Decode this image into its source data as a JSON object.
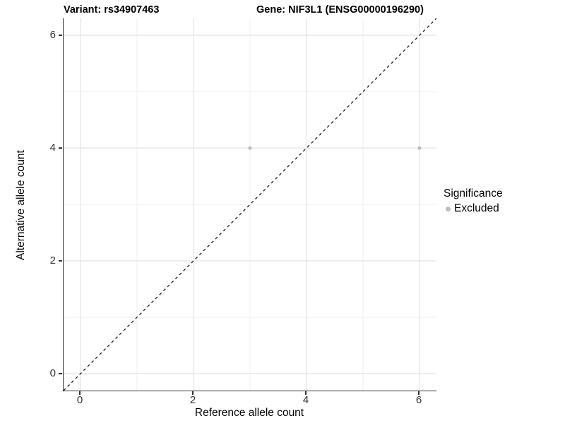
{
  "header": {
    "variant_title": "Variant: rs34907463",
    "gene_title": "Gene: NIF3L1 (ENSG00000196290)"
  },
  "axes": {
    "x_label": "Reference allele count",
    "y_label": "Alternative allele count"
  },
  "legend": {
    "title": "Significance",
    "items": [
      {
        "label": "Excluded",
        "color": "#bdbdbd"
      }
    ]
  },
  "colors": {
    "axis_line": "#333333",
    "grid_major": "#e4e4e4",
    "grid_minor": "#efefef",
    "identity_line": "#1a1a1a",
    "point_excluded": "#bdbdbd",
    "background": "#ffffff"
  },
  "chart_data": {
    "type": "scatter",
    "title": "Variant: rs34907463        Gene: NIF3L1 (ENSG00000196290)",
    "xlabel": "Reference allele count",
    "ylabel": "Alternative allele count",
    "xlim": [
      -0.3,
      6.3
    ],
    "ylim": [
      -0.3,
      6.3
    ],
    "x_ticks": [
      0,
      2,
      4,
      6
    ],
    "y_ticks": [
      0,
      2,
      4,
      6
    ],
    "grid_lines_x": [
      0,
      1,
      2,
      3,
      4,
      5,
      6
    ],
    "grid_lines_y": [
      0,
      1,
      2,
      3,
      4,
      5,
      6
    ],
    "grid": true,
    "legend_position": "right",
    "series": [
      {
        "name": "Excluded",
        "color": "#bdbdbd",
        "points": [
          {
            "x": 3,
            "y": 4
          },
          {
            "x": 6,
            "y": 4
          }
        ]
      }
    ],
    "reference_line": {
      "kind": "identity y=x",
      "style": "dashed",
      "color": "#1a1a1a",
      "from": [
        -0.3,
        -0.3
      ],
      "to": [
        6.3,
        6.3
      ]
    }
  }
}
